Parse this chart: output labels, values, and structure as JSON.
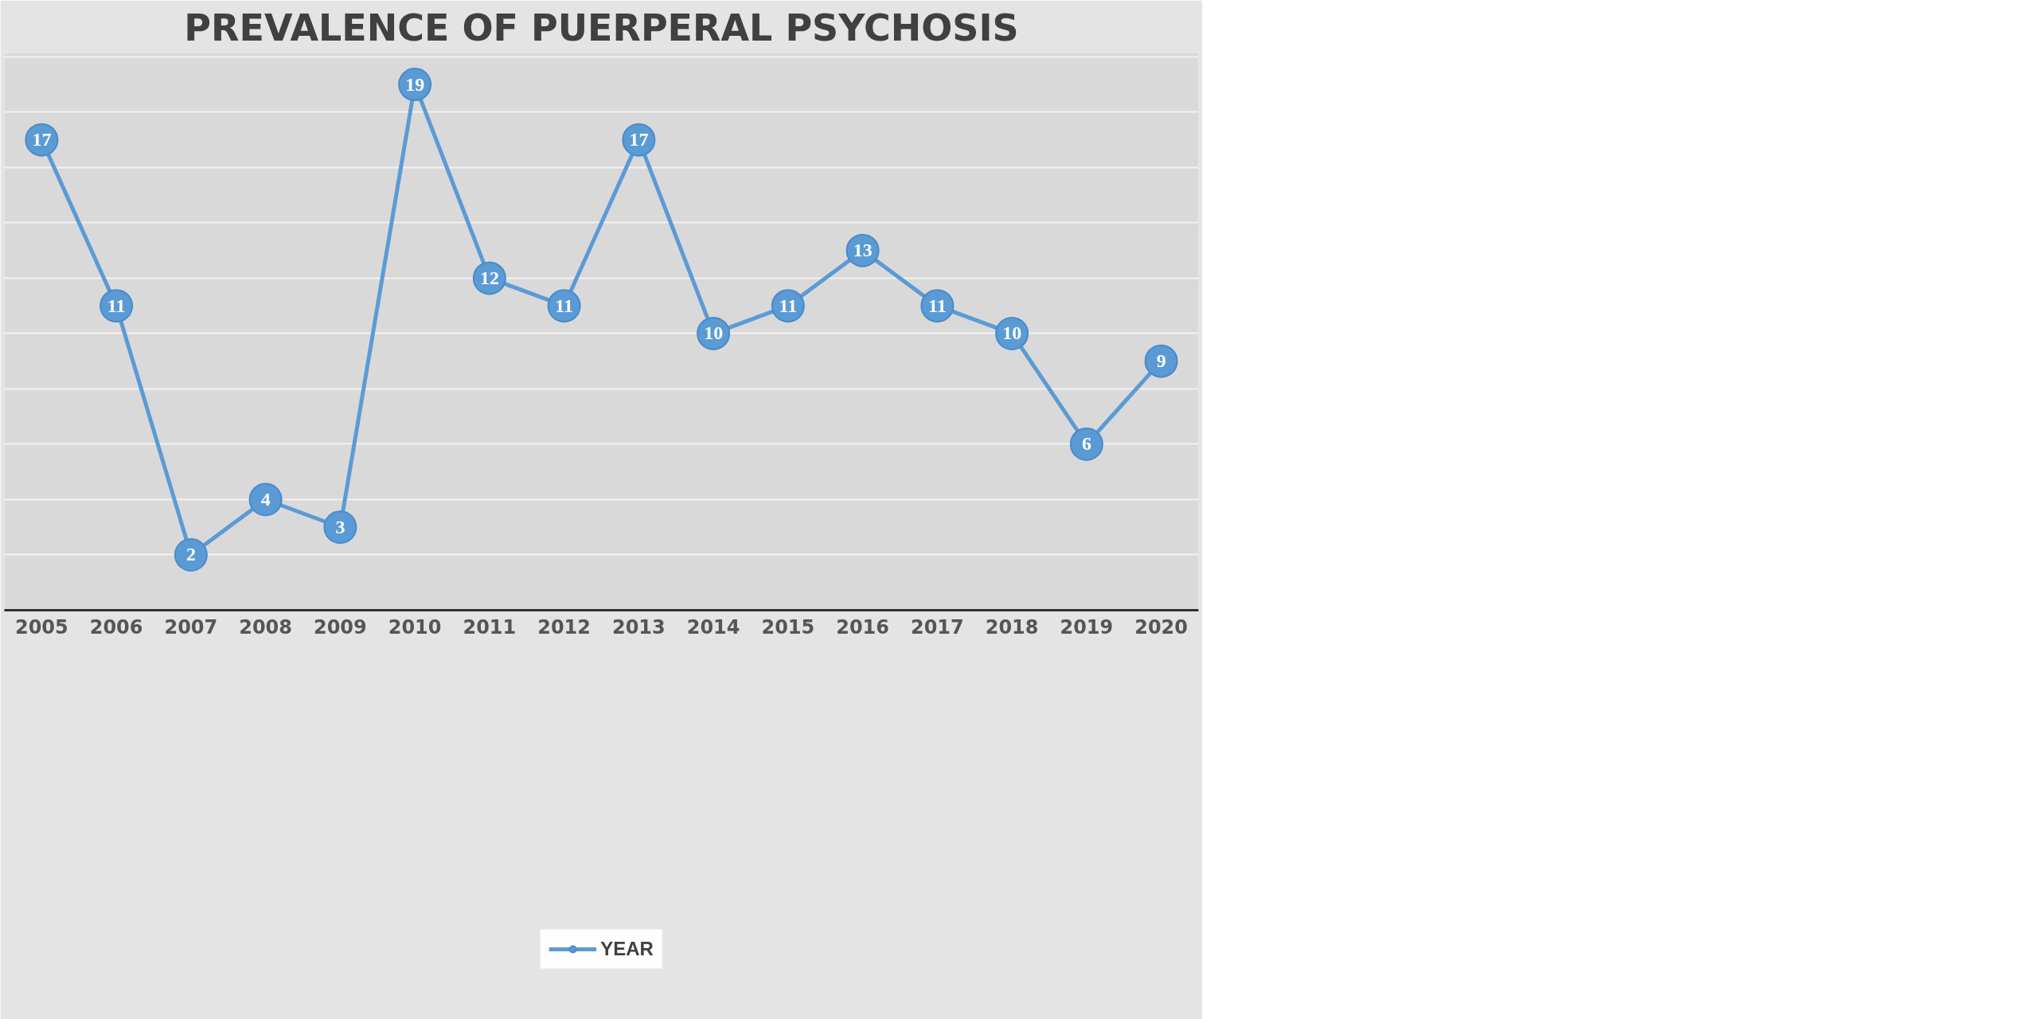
{
  "chart_data": {
    "type": "line",
    "title": "PREVALENCE OF PUERPERAL PSYCHOSIS",
    "categories": [
      "2005",
      "2006",
      "2007",
      "2008",
      "2009",
      "2010",
      "2011",
      "2012",
      "2013",
      "2014",
      "2015",
      "2016",
      "2017",
      "2018",
      "2019",
      "2020"
    ],
    "series": [
      {
        "name": "YEAR",
        "color": "#5b9bd5",
        "values": [
          17,
          11,
          2,
          4,
          3,
          19,
          12,
          11,
          17,
          10,
          11,
          13,
          11,
          10,
          6,
          9
        ]
      }
    ],
    "data_labels": true,
    "grid": "y",
    "legend": "bottom",
    "tick_labels": "x",
    "marker": "circle",
    "line_style": "solid"
  }
}
